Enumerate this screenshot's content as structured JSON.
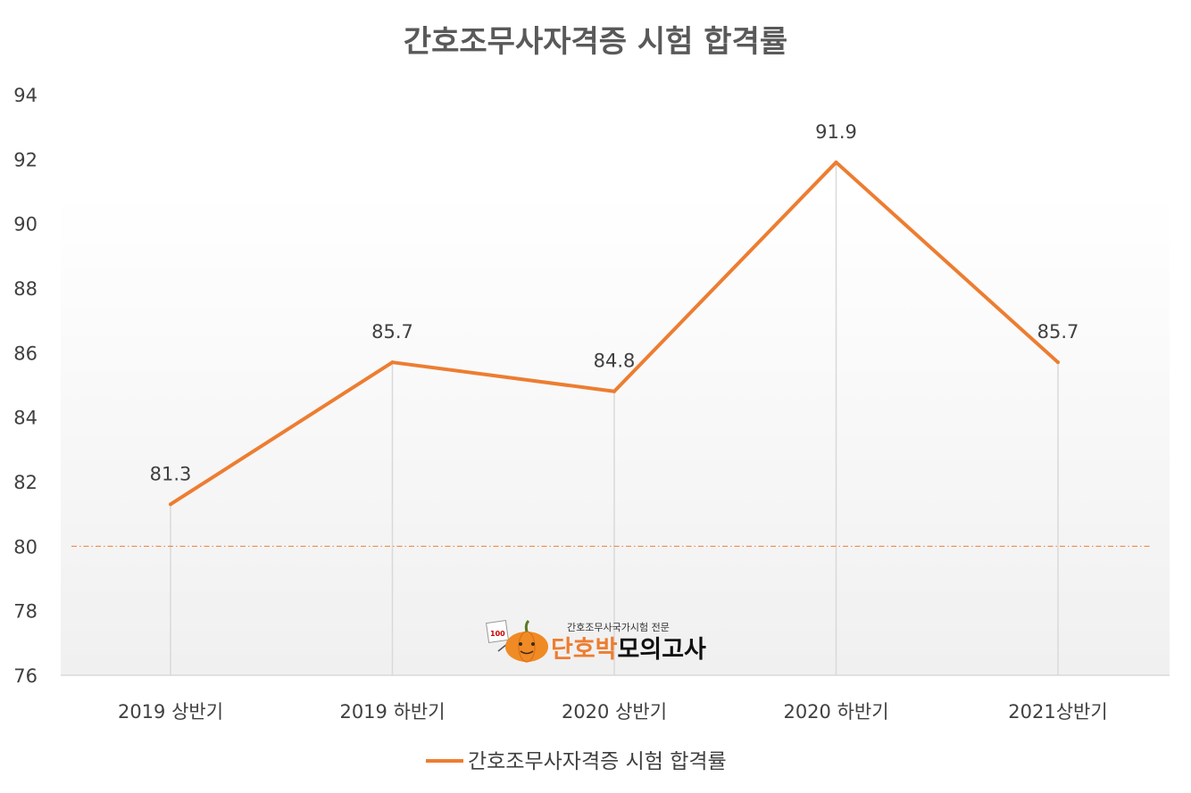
{
  "chart_data": {
    "type": "line",
    "title": "간호조무사자격증 시험 합격률",
    "categories": [
      "2019 상반기",
      "2019 하반기",
      "2020 상반기",
      "2020 하반기",
      "2021상반기"
    ],
    "series": [
      {
        "name": "간호조무사자격증 시험 합격률",
        "values": [
          81.3,
          85.7,
          84.8,
          91.9,
          85.7
        ],
        "color": "#ED7D31"
      }
    ],
    "ylim": [
      76,
      94
    ],
    "yticks": [
      "76",
      "78",
      "80",
      "82",
      "84",
      "86",
      "88",
      "90",
      "92",
      "94"
    ],
    "data_labels": [
      "81.3",
      "85.7",
      "84.8",
      "91.9",
      "85.7"
    ],
    "reference_line": {
      "value": 80,
      "style": "dash-dot",
      "color": "#ED7D31"
    },
    "legend_position": "bottom",
    "vertical_drop_lines": true
  },
  "watermark": {
    "tagline": "간호조무사국가시험 전문",
    "brand_part1": "단호박",
    "brand_part2": "모의고사",
    "badge": "100",
    "brand_colors": {
      "part1": "#ED7D31",
      "part2": "#111111"
    },
    "icon": "pumpkin-icon"
  }
}
